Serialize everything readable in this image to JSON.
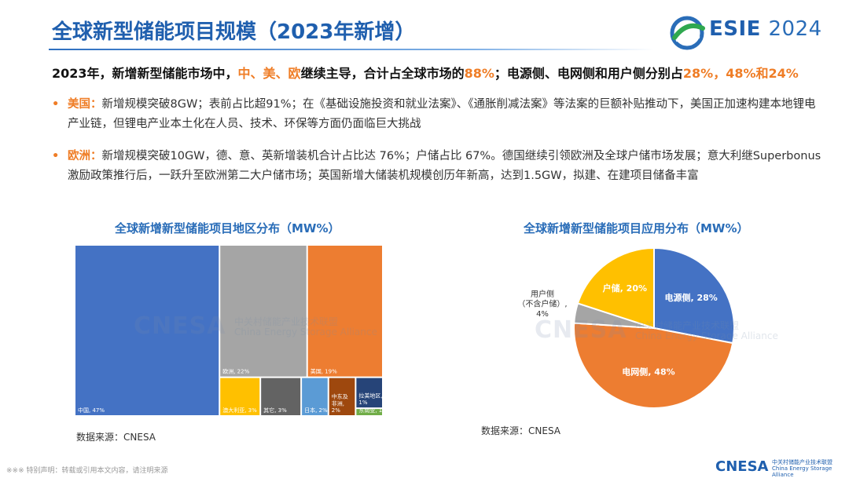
{
  "header": {
    "title": "全球新型储能项目规模（2023年新增）",
    "logo_name": "ESIE",
    "logo_year": "2024"
  },
  "summary": {
    "p1": "2023年，新增新型储能市场中，",
    "h1": "中、美、欧",
    "p2": "继续主导，合计占全球市场的",
    "h2": "88%",
    "p3": "；电源侧、电网侧和用户侧分别占",
    "h3": "28%，48%和24%"
  },
  "bullets": [
    {
      "label": "美国：",
      "text": "新增规模突破8GW；表前占比超91%；在《基础设施投资和就业法案》、《通胀削减法案》等法案的巨额补贴推动下，美国正加速构建本地锂电产业链，但锂电产业本土化在人员、技术、环保等方面仍面临巨大挑战"
    },
    {
      "label": "欧洲：",
      "text": "新增规模突破10GW，德、意、英新增装机合计占比达 76%；户储占比 67%。德国继续引领欧洲及全球户储市场发展；意大利继Superbonus激励政策推行后，一跃升至欧洲第二大户储市场；英国新增大储装机规模创历年新高，达到1.5GW，拟建、在建项目储备丰富"
    }
  ],
  "watermark": {
    "main": "CNESA",
    "sub1": "中关村储能产业技术联盟",
    "sub2": "China Energy Storage Alliance"
  },
  "footer": {
    "disclaimer": "※※※ 特别声明：转载或引用本文内容，请注明来源",
    "logo": "CNESA",
    "logo_sub1": "中关村储能产业技术联盟",
    "logo_sub2": "China Energy Storage Alliance"
  },
  "colors": {
    "blue": "#4472c4",
    "gray": "#a5a5a5",
    "orange": "#ed7d31",
    "yellow": "#ffc000",
    "darkgray": "#636363",
    "lightblue": "#5b9bd5",
    "brown": "#9e480e",
    "navy": "#264478",
    "green": "#70ad47"
  },
  "chart_data": [
    {
      "type": "treemap",
      "title": "全球新增新型储能项目地区分布（MW%）",
      "source": "数据来源：CNESA",
      "unit": "%",
      "items": [
        {
          "name": "中国",
          "value": 47,
          "label": "中国, 47%",
          "color": "#4472c4"
        },
        {
          "name": "欧洲",
          "value": 22,
          "label": "欧洲, 22%",
          "color": "#a5a5a5"
        },
        {
          "name": "美国",
          "value": 19,
          "label": "美国, 19%",
          "color": "#ed7d31"
        },
        {
          "name": "澳大利亚",
          "value": 3,
          "label": "澳大利亚, 3%",
          "color": "#ffc000"
        },
        {
          "name": "其它",
          "value": 3,
          "label": "其它, 3%",
          "color": "#636363"
        },
        {
          "name": "日本",
          "value": 2,
          "label": "日本, 2%",
          "color": "#5b9bd5"
        },
        {
          "name": "中东及非洲",
          "value": 2,
          "label_lines": [
            "中东及",
            "非洲,",
            "2%"
          ],
          "color": "#9e480e"
        },
        {
          "name": "拉美地区",
          "value": 1,
          "label_lines": [
            "拉美地区,",
            "1%"
          ],
          "color": "#264478"
        },
        {
          "name": "东南亚",
          "value": 1,
          "label": "东南亚, 1%",
          "color": "#70ad47"
        }
      ]
    },
    {
      "type": "pie",
      "title": "全球新增新型储能项目应用分布（MW%）",
      "source": "数据来源：CNESA",
      "unit": "%",
      "slices": [
        {
          "name": "电源侧",
          "value": 28,
          "label": "电源侧, 28%",
          "color": "#4472c4"
        },
        {
          "name": "电网侧",
          "value": 48,
          "label": "电网侧, 48%",
          "color": "#ed7d31"
        },
        {
          "name": "用户侧（不含户储）",
          "value": 4,
          "label_lines": [
            "用户侧",
            "（不含户储）,",
            "4%"
          ],
          "color": "#a5a5a5"
        },
        {
          "name": "户储",
          "value": 20,
          "label": "户储, 20%",
          "color": "#ffc000"
        }
      ]
    }
  ]
}
